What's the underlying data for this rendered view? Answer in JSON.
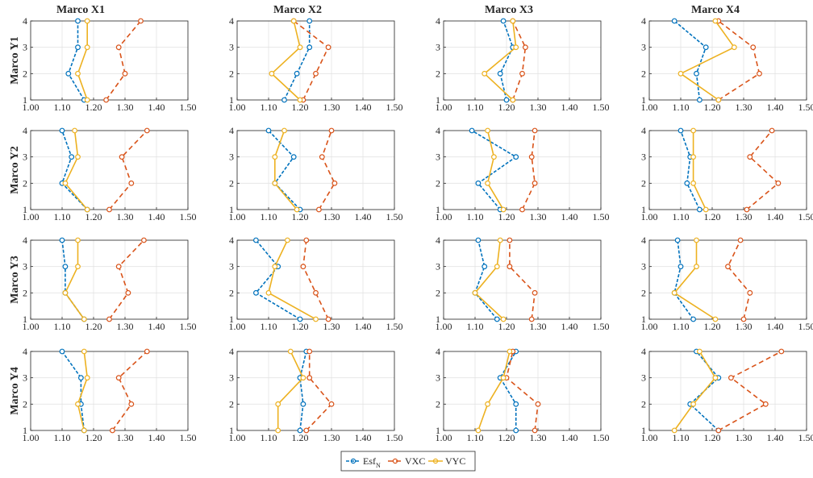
{
  "chart_data": {
    "type": "line",
    "column_titles": [
      "Marco X1",
      "Marco X2",
      "Marco X3",
      "Marco X4"
    ],
    "row_titles": [
      "Marco Y1",
      "Marco Y2",
      "Marco Y3",
      "Marco Y4"
    ],
    "xlim": [
      1.0,
      1.5
    ],
    "x_ticks": [
      "1.00",
      "1.10",
      "1.20",
      "1.30",
      "1.40",
      "1.50"
    ],
    "ylim": [
      1,
      4
    ],
    "y_ticks": [
      "1",
      "2",
      "3",
      "4"
    ],
    "grid": true,
    "legend_position": "bottom-center",
    "series_styles": [
      {
        "name": "Esf",
        "subscript": "N",
        "color": "#0072BD",
        "dash": "4,2",
        "marker": "circle"
      },
      {
        "name": "VXC",
        "color": "#D95319",
        "dash": "6,4",
        "marker": "circle"
      },
      {
        "name": "VYC",
        "color": "#EDB120",
        "dash": "",
        "marker": "circle"
      }
    ],
    "panels": [
      {
        "row": "Marco Y1",
        "col": "Marco X1",
        "y": [
          1,
          2,
          3,
          4
        ],
        "series": [
          {
            "name": "EsfN",
            "x": [
              1.17,
              1.12,
              1.15,
              1.15
            ]
          },
          {
            "name": "VXC",
            "x": [
              1.24,
              1.3,
              1.28,
              1.35
            ]
          },
          {
            "name": "VYC",
            "x": [
              1.18,
              1.15,
              1.18,
              1.18
            ]
          }
        ]
      },
      {
        "row": "Marco Y1",
        "col": "Marco X2",
        "y": [
          1,
          2,
          3,
          4
        ],
        "series": [
          {
            "name": "EsfN",
            "x": [
              1.15,
              1.19,
              1.23,
              1.23
            ]
          },
          {
            "name": "VXC",
            "x": [
              1.21,
              1.25,
              1.29,
              1.18
            ]
          },
          {
            "name": "VYC",
            "x": [
              1.2,
              1.11,
              1.2,
              1.18
            ]
          }
        ]
      },
      {
        "row": "Marco Y1",
        "col": "Marco X3",
        "y": [
          1,
          2,
          3,
          4
        ],
        "series": [
          {
            "name": "EsfN",
            "x": [
              1.2,
              1.18,
              1.22,
              1.19
            ]
          },
          {
            "name": "VXC",
            "x": [
              1.22,
              1.25,
              1.26,
              1.22
            ]
          },
          {
            "name": "VYC",
            "x": [
              1.22,
              1.13,
              1.23,
              1.22
            ]
          }
        ]
      },
      {
        "row": "Marco Y1",
        "col": "Marco X4",
        "y": [
          1,
          2,
          3,
          4
        ],
        "series": [
          {
            "name": "EsfN",
            "x": [
              1.16,
              1.15,
              1.18,
              1.08
            ]
          },
          {
            "name": "VXC",
            "x": [
              1.22,
              1.35,
              1.33,
              1.22
            ]
          },
          {
            "name": "VYC",
            "x": [
              1.22,
              1.1,
              1.27,
              1.21
            ]
          }
        ]
      },
      {
        "row": "Marco Y2",
        "col": "Marco X1",
        "y": [
          1,
          2,
          3,
          4
        ],
        "series": [
          {
            "name": "EsfN",
            "x": [
              1.18,
              1.1,
              1.13,
              1.1
            ]
          },
          {
            "name": "VXC",
            "x": [
              1.25,
              1.32,
              1.29,
              1.37
            ]
          },
          {
            "name": "VYC",
            "x": [
              1.18,
              1.11,
              1.15,
              1.14
            ]
          }
        ]
      },
      {
        "row": "Marco Y2",
        "col": "Marco X2",
        "y": [
          1,
          2,
          3,
          4
        ],
        "series": [
          {
            "name": "EsfN",
            "x": [
              1.2,
              1.12,
              1.18,
              1.1
            ]
          },
          {
            "name": "VXC",
            "x": [
              1.26,
              1.31,
              1.27,
              1.3
            ]
          },
          {
            "name": "VYC",
            "x": [
              1.19,
              1.12,
              1.12,
              1.15
            ]
          }
        ]
      },
      {
        "row": "Marco Y2",
        "col": "Marco X3",
        "y": [
          1,
          2,
          3,
          4
        ],
        "series": [
          {
            "name": "EsfN",
            "x": [
              1.18,
              1.11,
              1.23,
              1.09
            ]
          },
          {
            "name": "VXC",
            "x": [
              1.25,
              1.29,
              1.28,
              1.29
            ]
          },
          {
            "name": "VYC",
            "x": [
              1.19,
              1.14,
              1.16,
              1.14
            ]
          }
        ]
      },
      {
        "row": "Marco Y2",
        "col": "Marco X4",
        "y": [
          1,
          2,
          3,
          4
        ],
        "series": [
          {
            "name": "EsfN",
            "x": [
              1.16,
              1.12,
              1.13,
              1.1
            ]
          },
          {
            "name": "VXC",
            "x": [
              1.31,
              1.41,
              1.32,
              1.39
            ]
          },
          {
            "name": "VYC",
            "x": [
              1.18,
              1.14,
              1.14,
              1.14
            ]
          }
        ]
      },
      {
        "row": "Marco Y3",
        "col": "Marco X1",
        "y": [
          1,
          2,
          3,
          4
        ],
        "series": [
          {
            "name": "EsfN",
            "x": [
              1.17,
              1.11,
              1.11,
              1.1
            ]
          },
          {
            "name": "VXC",
            "x": [
              1.25,
              1.31,
              1.28,
              1.36
            ]
          },
          {
            "name": "VYC",
            "x": [
              1.17,
              1.11,
              1.15,
              1.15
            ]
          }
        ]
      },
      {
        "row": "Marco Y3",
        "col": "Marco X2",
        "y": [
          1,
          2,
          3,
          4
        ],
        "series": [
          {
            "name": "EsfN",
            "x": [
              1.2,
              1.06,
              1.13,
              1.06
            ]
          },
          {
            "name": "VXC",
            "x": [
              1.29,
              1.25,
              1.21,
              1.22
            ]
          },
          {
            "name": "VYC",
            "x": [
              1.25,
              1.1,
              1.12,
              1.16
            ]
          }
        ]
      },
      {
        "row": "Marco Y3",
        "col": "Marco X3",
        "y": [
          1,
          2,
          3,
          4
        ],
        "series": [
          {
            "name": "EsfN",
            "x": [
              1.17,
              1.1,
              1.13,
              1.11
            ]
          },
          {
            "name": "VXC",
            "x": [
              1.28,
              1.29,
              1.21,
              1.21
            ]
          },
          {
            "name": "VYC",
            "x": [
              1.19,
              1.1,
              1.17,
              1.18
            ]
          }
        ]
      },
      {
        "row": "Marco Y3",
        "col": "Marco X4",
        "y": [
          1,
          2,
          3,
          4
        ],
        "series": [
          {
            "name": "EsfN",
            "x": [
              1.14,
              1.08,
              1.1,
              1.09
            ]
          },
          {
            "name": "VXC",
            "x": [
              1.3,
              1.32,
              1.25,
              1.29
            ]
          },
          {
            "name": "VYC",
            "x": [
              1.21,
              1.08,
              1.15,
              1.15
            ]
          }
        ]
      },
      {
        "row": "Marco Y4",
        "col": "Marco X1",
        "y": [
          1,
          2,
          3,
          4
        ],
        "series": [
          {
            "name": "EsfN",
            "x": [
              1.17,
              1.16,
              1.16,
              1.1
            ]
          },
          {
            "name": "VXC",
            "x": [
              1.26,
              1.32,
              1.28,
              1.37
            ]
          },
          {
            "name": "VYC",
            "x": [
              1.17,
              1.15,
              1.18,
              1.17
            ]
          }
        ]
      },
      {
        "row": "Marco Y4",
        "col": "Marco X2",
        "y": [
          1,
          2,
          3,
          4
        ],
        "series": [
          {
            "name": "EsfN",
            "x": [
              1.2,
              1.21,
              1.2,
              1.22
            ]
          },
          {
            "name": "VXC",
            "x": [
              1.22,
              1.3,
              1.23,
              1.23
            ]
          },
          {
            "name": "VYC",
            "x": [
              1.13,
              1.13,
              1.21,
              1.17
            ]
          }
        ]
      },
      {
        "row": "Marco Y4",
        "col": "Marco X3",
        "y": [
          1,
          2,
          3,
          4
        ],
        "series": [
          {
            "name": "EsfN",
            "x": [
              1.23,
              1.23,
              1.18,
              1.23
            ]
          },
          {
            "name": "VXC",
            "x": [
              1.29,
              1.3,
              1.2,
              1.22
            ]
          },
          {
            "name": "VYC",
            "x": [
              1.11,
              1.14,
              1.19,
              1.21
            ]
          }
        ]
      },
      {
        "row": "Marco Y4",
        "col": "Marco X4",
        "y": [
          1,
          2,
          3,
          4
        ],
        "series": [
          {
            "name": "EsfN",
            "x": [
              1.22,
              1.13,
              1.22,
              1.15
            ]
          },
          {
            "name": "VXC",
            "x": [
              1.22,
              1.37,
              1.26,
              1.42
            ]
          },
          {
            "name": "VYC",
            "x": [
              1.08,
              1.14,
              1.21,
              1.16
            ]
          }
        ]
      }
    ]
  }
}
